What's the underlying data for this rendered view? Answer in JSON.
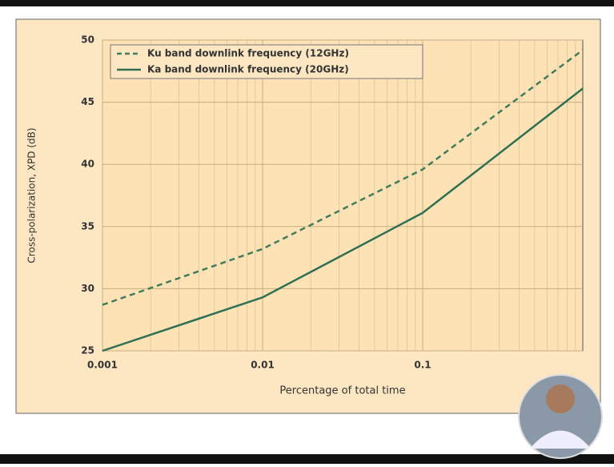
{
  "chart_data": {
    "type": "line",
    "x_label": "Percentage of total time",
    "y_label": "Cross-polarization, XPD (dB)",
    "x": [
      0.001,
      0.01,
      0.1,
      1
    ],
    "series": [
      {
        "name": "Ku band downlink frequency (12GHz)",
        "color": "#3f7d5c",
        "linestyle": "dashed",
        "values": [
          28.7,
          33.2,
          39.6,
          49.2
        ]
      },
      {
        "name": "Ka band downlink frequency (20GHz)",
        "color": "#2f6f52",
        "linestyle": "solid",
        "values": [
          25,
          29.3,
          36.1,
          46.1
        ]
      }
    ],
    "xscale": "log",
    "xlim": [
      0.001,
      1
    ],
    "xticks": [
      0.001,
      0.01,
      0.1
    ],
    "ylim": [
      25,
      50
    ],
    "yticks": [
      25,
      30,
      35,
      40,
      45,
      50
    ],
    "grid": true,
    "legend": "upper left"
  }
}
